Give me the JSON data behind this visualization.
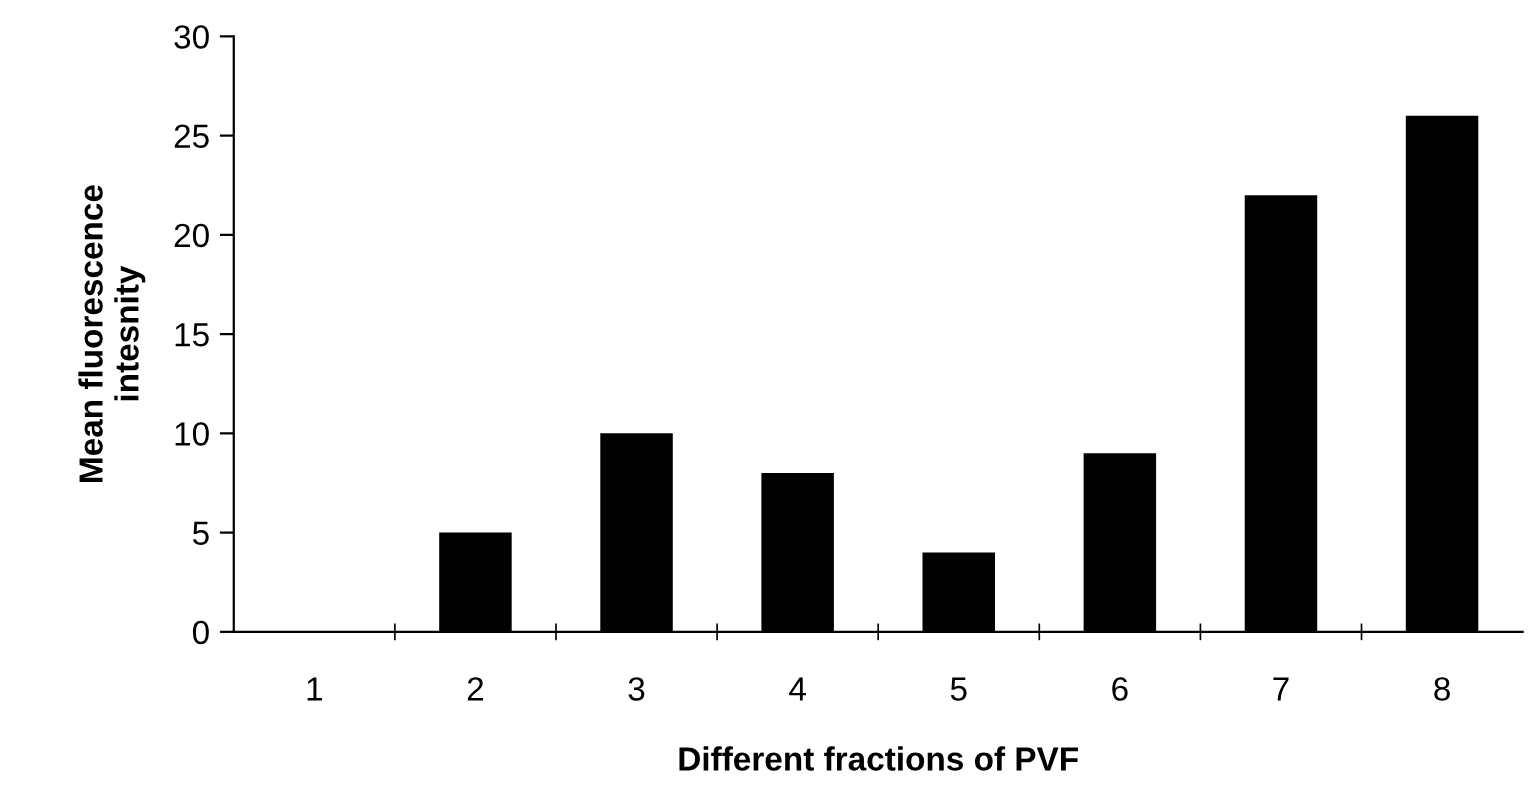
{
  "chart_data": {
    "type": "bar",
    "xlabel": "Different fractions of PVF",
    "ylabel": "Mean fluorescence\nintesnity",
    "categories": [
      "1",
      "2",
      "3",
      "4",
      "5",
      "6",
      "7",
      "8"
    ],
    "values": [
      0,
      5,
      10,
      8,
      4,
      9,
      22,
      26
    ],
    "color": "#000000",
    "ylim": [
      0,
      30
    ],
    "yticks": [
      0,
      5,
      10,
      15,
      20,
      25,
      30
    ],
    "grid": false,
    "legend": false
  }
}
